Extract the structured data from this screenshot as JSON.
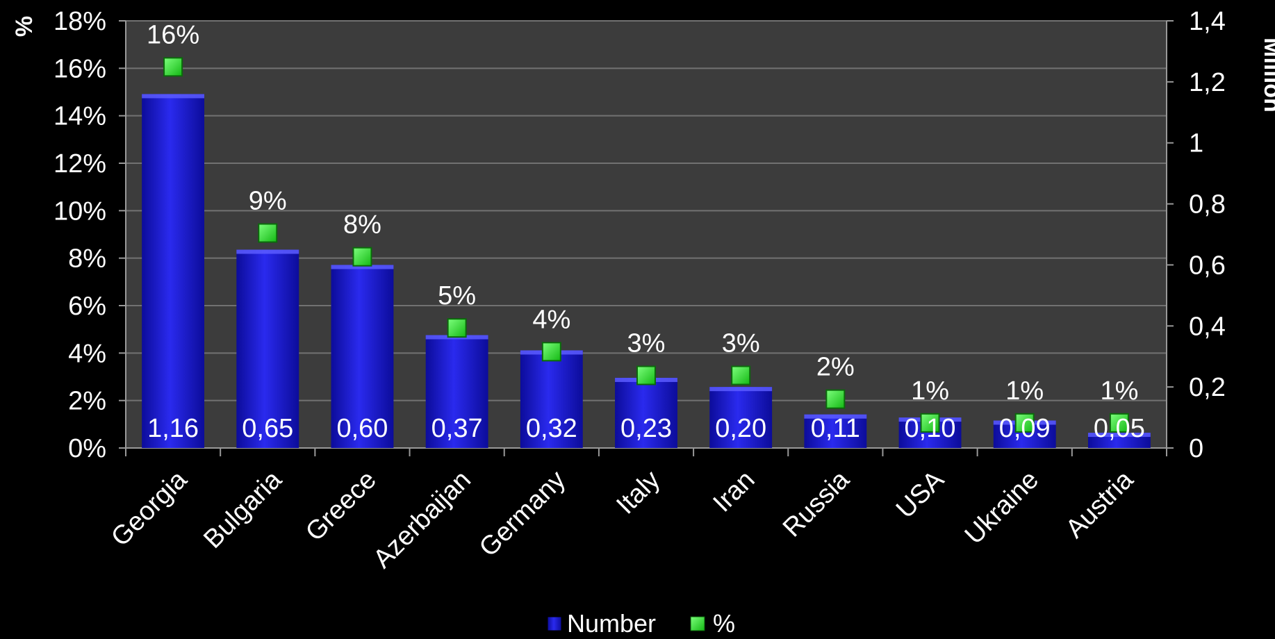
{
  "chart_data": {
    "type": "bar",
    "categories": [
      "Georgia",
      "Bulgaria",
      "Greece",
      "Azerbaijan",
      "Germany",
      "Italy",
      "Iran",
      "Russia",
      "USA",
      "Ukraine",
      "Austria"
    ],
    "series": [
      {
        "name": "Number",
        "axis": "right",
        "values": [
          1.16,
          0.65,
          0.6,
          0.37,
          0.32,
          0.23,
          0.2,
          0.11,
          0.1,
          0.09,
          0.05
        ],
        "labels": [
          "1,16",
          "0,65",
          "0,60",
          "0,37",
          "0,32",
          "0,23",
          "0,20",
          "0,11",
          "0,10",
          "0,09",
          "0,05"
        ],
        "color": "#1a1adc"
      },
      {
        "name": "%",
        "axis": "left",
        "values": [
          16,
          9,
          8,
          5,
          4,
          3,
          3,
          2,
          1,
          1,
          1
        ],
        "labels": [
          "16%",
          "9%",
          "8%",
          "5%",
          "4%",
          "3%",
          "3%",
          "2%",
          "1%",
          "1%",
          "1%"
        ],
        "color": "#22dd22"
      }
    ],
    "left_axis": {
      "title": "%",
      "ylim": [
        0,
        18
      ],
      "ticks": [
        0,
        2,
        4,
        6,
        8,
        10,
        12,
        14,
        16,
        18
      ],
      "tick_labels": [
        "0%",
        "2%",
        "4%",
        "6%",
        "8%",
        "10%",
        "12%",
        "14%",
        "16%",
        "18%"
      ]
    },
    "right_axis": {
      "title": "Million",
      "ylim": [
        0,
        1.4
      ],
      "ticks": [
        0,
        0.2,
        0.4,
        0.6,
        0.8,
        1.0,
        1.2,
        1.4
      ],
      "tick_labels": [
        "0",
        "0,2",
        "0,4",
        "0,6",
        "0,8",
        "1",
        "1,2",
        "1,4"
      ]
    },
    "grid": true,
    "legend": "bottom",
    "colors": {
      "background": "#000000",
      "plot_area": "#3c3c3c",
      "gridline": "#707070",
      "text": "#ffffff"
    }
  }
}
